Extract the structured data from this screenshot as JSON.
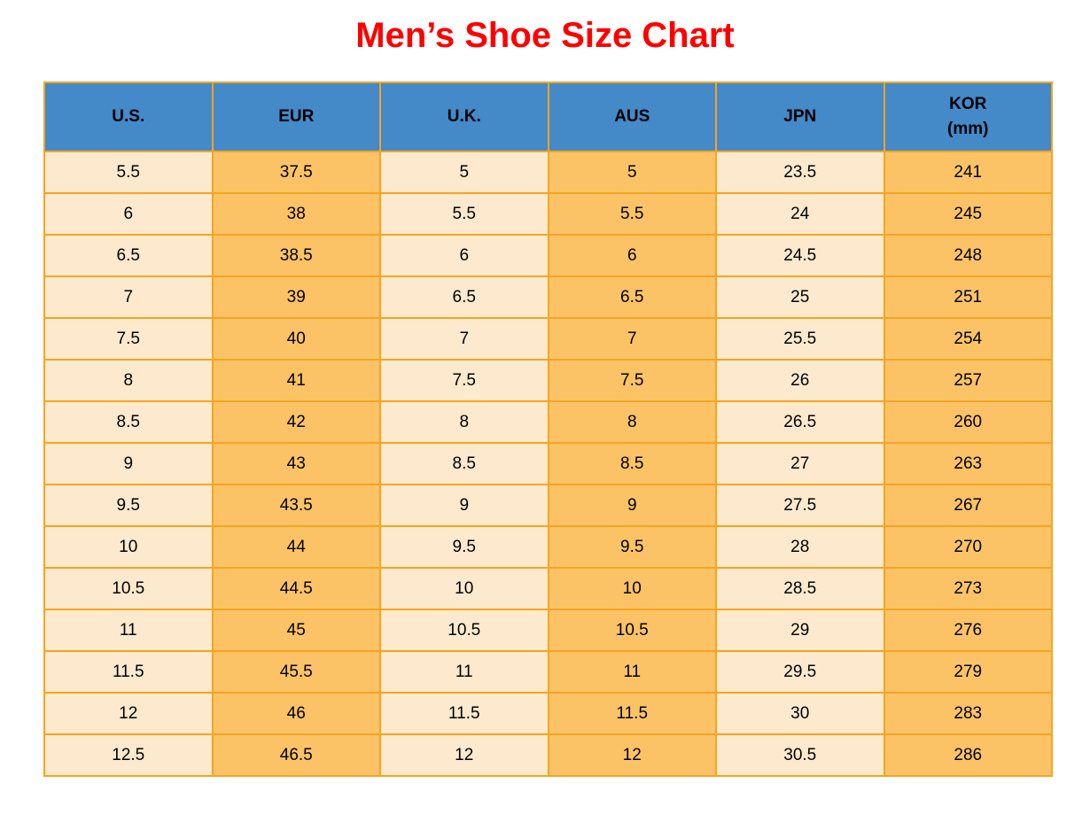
{
  "title": "Men’s Shoe Size Chart",
  "colors": {
    "title": "#FE0000",
    "header_bg": "#4489C8",
    "header_text": "#000000",
    "grid_border": "#F7A420",
    "row_cream": "#FDE9CD",
    "row_orange": "#FCC366",
    "cell_text": "#000000",
    "background": "#FFFFFF"
  },
  "chart_data": {
    "type": "table",
    "title": "Men’s Shoe Size Chart",
    "legend_position": "none",
    "grid": true,
    "columns": [
      {
        "key": "us",
        "label": "U.S.",
        "sublabel": "",
        "shade": "cream"
      },
      {
        "key": "eur",
        "label": "EUR",
        "sublabel": "",
        "shade": "orange"
      },
      {
        "key": "uk",
        "label": "U.K.",
        "sublabel": "",
        "shade": "cream"
      },
      {
        "key": "aus",
        "label": "AUS",
        "sublabel": "",
        "shade": "orange"
      },
      {
        "key": "jpn",
        "label": "JPN",
        "sublabel": "",
        "shade": "cream"
      },
      {
        "key": "kor",
        "label": "KOR",
        "sublabel": "(mm)",
        "shade": "orange"
      }
    ],
    "rows": [
      [
        "5.5",
        "37.5",
        "5",
        "5",
        "23.5",
        "241"
      ],
      [
        "6",
        "38",
        "5.5",
        "5.5",
        "24",
        "245"
      ],
      [
        "6.5",
        "38.5",
        "6",
        "6",
        "24.5",
        "248"
      ],
      [
        "7",
        "39",
        "6.5",
        "6.5",
        "25",
        "251"
      ],
      [
        "7.5",
        "40",
        "7",
        "7",
        "25.5",
        "254"
      ],
      [
        "8",
        "41",
        "7.5",
        "7.5",
        "26",
        "257"
      ],
      [
        "8.5",
        "42",
        "8",
        "8",
        "26.5",
        "260"
      ],
      [
        "9",
        "43",
        "8.5",
        "8.5",
        "27",
        "263"
      ],
      [
        "9.5",
        "43.5",
        "9",
        "9",
        "27.5",
        "267"
      ],
      [
        "10",
        "44",
        "9.5",
        "9.5",
        "28",
        "270"
      ],
      [
        "10.5",
        "44.5",
        "10",
        "10",
        "28.5",
        "273"
      ],
      [
        "11",
        "45",
        "10.5",
        "10.5",
        "29",
        "276"
      ],
      [
        "11.5",
        "45.5",
        "11",
        "11",
        "29.5",
        "279"
      ],
      [
        "12",
        "46",
        "11.5",
        "11.5",
        "30",
        "283"
      ],
      [
        "12.5",
        "46.5",
        "12",
        "12",
        "30.5",
        "286"
      ]
    ]
  }
}
